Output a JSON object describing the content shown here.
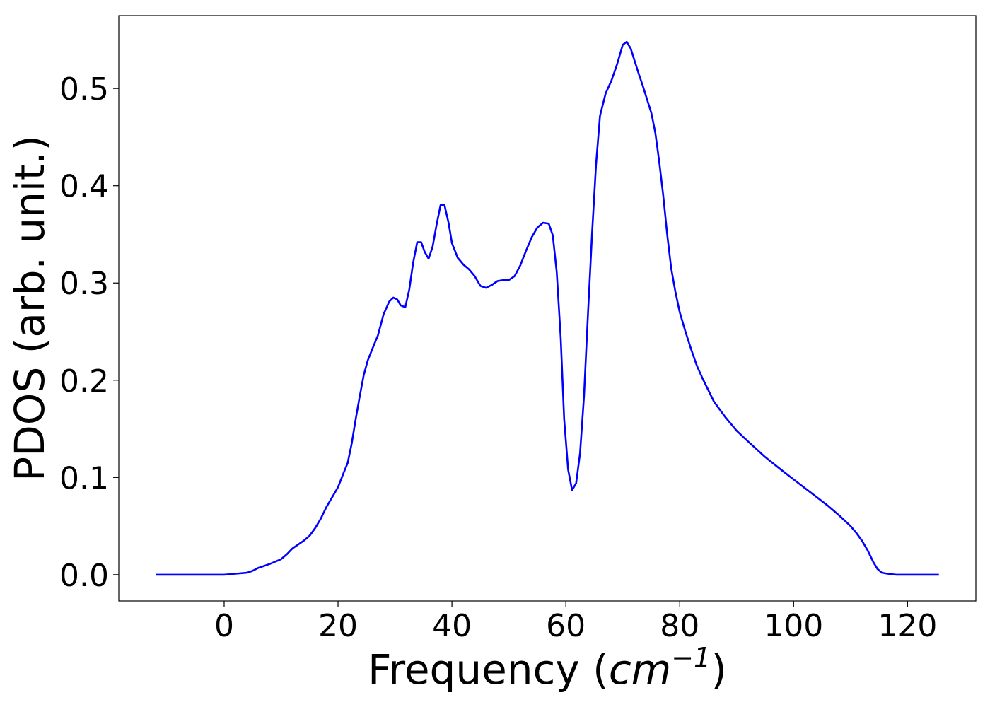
{
  "chart_data": {
    "type": "line",
    "title": "",
    "xlabel": "Frequency (",
    "xlabel_math": "cm",
    "xlabel_exp": "−1",
    "xlabel_close": ")",
    "ylabel": "PDOS (arb. unit.)",
    "xlim": [
      -18.5,
      132
    ],
    "ylim": [
      -0.027,
      0.575
    ],
    "grid": false,
    "legend": "none",
    "x_ticks": [
      0,
      20,
      40,
      60,
      80,
      100,
      120
    ],
    "x_tick_labels": [
      "0",
      "20",
      "40",
      "60",
      "80",
      "100",
      "120"
    ],
    "y_ticks": [
      0.0,
      0.1,
      0.2,
      0.3,
      0.4,
      0.5
    ],
    "y_tick_labels": [
      "0.0",
      "0.1",
      "0.2",
      "0.3",
      "0.4",
      "0.5"
    ],
    "line_color": "#0000ff",
    "series": [
      {
        "x": [
          -12,
          -8,
          -4,
          0,
          2,
          4,
          5,
          6,
          7,
          8,
          10,
          11,
          12,
          13,
          14,
          15,
          16,
          17,
          18,
          19,
          20,
          21,
          21.7,
          22.4,
          23.1,
          23.8,
          24.5,
          25.2,
          26,
          27,
          28,
          29,
          29.7,
          30.4,
          31,
          31.8,
          32.5,
          33.2,
          33.9,
          34.6,
          35.2,
          35.9,
          36.6,
          37.3,
          38,
          38.7,
          39.4,
          40,
          41,
          42,
          43,
          44,
          45,
          46,
          47,
          48,
          49,
          50,
          51,
          52,
          53,
          54,
          55,
          56,
          57,
          57.7,
          58.4,
          59.1,
          59.7,
          60.4,
          61.1,
          61.8,
          62.5,
          63.2,
          63.9,
          64.6,
          65.3,
          66,
          67,
          68,
          69,
          70,
          70.7,
          71.4,
          72.1,
          72.8,
          73.5,
          74.2,
          75,
          75.7,
          76.4,
          77.1,
          77.8,
          78.5,
          79.2,
          80,
          81,
          82,
          83,
          84,
          85,
          86,
          88,
          90,
          92,
          95,
          98,
          100,
          102,
          104,
          106,
          108,
          110,
          111,
          112,
          113,
          114,
          114.7,
          115.5,
          116.5,
          118,
          120,
          122,
          125.5
        ],
        "values": [
          0,
          0,
          0,
          0,
          0.001,
          0.002,
          0.004,
          0.007,
          0.009,
          0.011,
          0.016,
          0.021,
          0.027,
          0.031,
          0.035,
          0.04,
          0.048,
          0.058,
          0.07,
          0.08,
          0.09,
          0.105,
          0.115,
          0.135,
          0.16,
          0.183,
          0.205,
          0.22,
          0.232,
          0.246,
          0.268,
          0.281,
          0.285,
          0.283,
          0.277,
          0.275,
          0.293,
          0.321,
          0.342,
          0.342,
          0.332,
          0.325,
          0.337,
          0.36,
          0.38,
          0.38,
          0.362,
          0.341,
          0.326,
          0.319,
          0.314,
          0.307,
          0.297,
          0.295,
          0.298,
          0.302,
          0.303,
          0.303,
          0.307,
          0.318,
          0.333,
          0.347,
          0.357,
          0.362,
          0.361,
          0.349,
          0.311,
          0.244,
          0.16,
          0.108,
          0.087,
          0.094,
          0.125,
          0.184,
          0.27,
          0.35,
          0.422,
          0.472,
          0.495,
          0.508,
          0.525,
          0.545,
          0.548,
          0.541,
          0.528,
          0.515,
          0.503,
          0.49,
          0.475,
          0.455,
          0.425,
          0.39,
          0.35,
          0.315,
          0.292,
          0.27,
          0.25,
          0.232,
          0.215,
          0.202,
          0.19,
          0.178,
          0.162,
          0.148,
          0.137,
          0.121,
          0.107,
          0.098,
          0.089,
          0.08,
          0.071,
          0.061,
          0.05,
          0.043,
          0.035,
          0.025,
          0.013,
          0.006,
          0.002,
          0.001,
          0,
          0,
          0,
          0
        ]
      }
    ]
  }
}
